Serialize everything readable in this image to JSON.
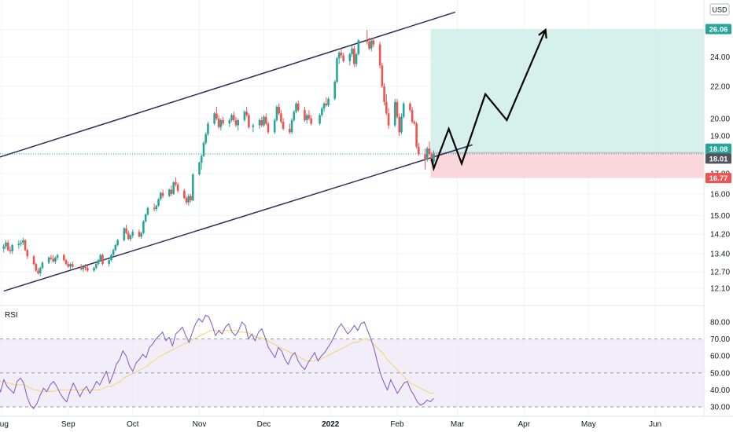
{
  "currency_label": "USD",
  "colors": {
    "up": "#26a69a",
    "down": "#ef5350",
    "channel": "#2a2e5c",
    "rsi_line": "#7e57c2",
    "rsi_ma": "#f5d36b",
    "rsi_band": "#ede7f6",
    "target_zone": "#cfeee8",
    "stop_zone": "#f9d3d6",
    "target_badge": "#26a69a",
    "stop_badge": "#ef5350",
    "price_badge": "#50535e",
    "grid": "#f0f3fa"
  },
  "price_axis": {
    "ticks": [
      "26.00",
      "24.00",
      "22.00",
      "20.00",
      "19.00",
      "18.00",
      "17.00",
      "16.00",
      "15.00",
      "14.20",
      "13.40",
      "12.70",
      "12.10"
    ],
    "badges": {
      "target": "26.06",
      "entry": "18.08",
      "last": "18.01",
      "stop": "16.77"
    }
  },
  "rsi_panel": {
    "label": "RSI",
    "ticks": [
      "80.00",
      "70.00",
      "60.00",
      "50.00",
      "40.00",
      "30.00"
    ]
  },
  "time_axis": {
    "labels": [
      "Aug",
      "Sep",
      "Oct",
      "Nov",
      "Dec",
      "2022",
      "Feb",
      "Mar",
      "Apr",
      "May",
      "Jun"
    ]
  },
  "chart_data": {
    "type": "candlestick",
    "title": "",
    "y_scale": "log",
    "ylim": [
      11.8,
      27.5
    ],
    "rsi_ylim": [
      28,
      85
    ],
    "candles": [
      [
        "Jul 30",
        13.75,
        13.9,
        13.55,
        13.6
      ],
      [
        "Aug 2",
        13.6,
        13.8,
        13.45,
        13.7
      ],
      [
        "Aug 3",
        13.7,
        13.95,
        13.6,
        13.85
      ],
      [
        "Aug 4",
        13.85,
        13.95,
        13.5,
        13.55
      ],
      [
        "Aug 5",
        13.55,
        13.7,
        13.4,
        13.5
      ],
      [
        "Aug 6",
        13.5,
        13.8,
        13.4,
        13.75
      ],
      [
        "Aug 9",
        13.75,
        13.95,
        13.6,
        13.8
      ],
      [
        "Aug 10",
        13.8,
        13.95,
        13.7,
        13.85
      ],
      [
        "Aug 11",
        13.85,
        14.05,
        13.75,
        13.95
      ],
      [
        "Aug 12",
        13.95,
        14.0,
        13.5,
        13.55
      ],
      [
        "Aug 13",
        13.55,
        13.6,
        13.2,
        13.3
      ],
      [
        "Aug 16",
        13.3,
        13.35,
        12.95,
        13.0
      ],
      [
        "Aug 17",
        13.0,
        13.05,
        12.7,
        12.75
      ],
      [
        "Aug 18",
        12.75,
        12.85,
        12.6,
        12.65
      ],
      [
        "Aug 19",
        12.65,
        12.9,
        12.55,
        12.85
      ],
      [
        "Aug 20",
        12.85,
        13.1,
        12.8,
        13.05
      ],
      [
        "Aug 23",
        13.05,
        13.3,
        13.0,
        13.25
      ],
      [
        "Aug 24",
        13.25,
        13.35,
        13.15,
        13.2
      ],
      [
        "Aug 25",
        13.2,
        13.35,
        13.05,
        13.1
      ],
      [
        "Aug 26",
        13.1,
        13.3,
        13.0,
        13.25
      ],
      [
        "Aug 27",
        13.25,
        13.4,
        13.15,
        13.35
      ],
      [
        "Aug 30",
        13.35,
        13.4,
        13.1,
        13.15
      ],
      [
        "Aug 31",
        13.15,
        13.2,
        12.95,
        13.0
      ],
      [
        "Sep 1",
        13.0,
        13.1,
        12.85,
        12.9
      ],
      [
        "Sep 2",
        12.9,
        13.05,
        12.8,
        13.0
      ],
      [
        "Sep 3",
        13.0,
        13.1,
        12.85,
        12.9
      ],
      [
        "Sep 7",
        12.9,
        13.0,
        12.75,
        12.8
      ],
      [
        "Sep 8",
        12.8,
        12.95,
        12.7,
        12.9
      ],
      [
        "Sep 9",
        12.9,
        13.0,
        12.75,
        12.85
      ],
      [
        "Sep 10",
        12.85,
        12.95,
        12.7,
        12.75
      ],
      [
        "Sep 13",
        12.75,
        12.9,
        12.7,
        12.85
      ],
      [
        "Sep 14",
        12.85,
        13.05,
        12.8,
        13.0
      ],
      [
        "Sep 15",
        13.0,
        13.2,
        12.95,
        13.15
      ],
      [
        "Sep 16",
        13.15,
        13.4,
        13.1,
        13.35
      ],
      [
        "Sep 17",
        13.35,
        13.4,
        12.95,
        13.0
      ],
      [
        "Sep 20",
        13.0,
        13.2,
        12.9,
        13.15
      ],
      [
        "Sep 21",
        13.15,
        13.4,
        13.1,
        13.35
      ],
      [
        "Sep 22",
        13.35,
        13.6,
        13.3,
        13.55
      ],
      [
        "Sep 23",
        13.55,
        13.8,
        13.5,
        13.75
      ],
      [
        "Sep 24",
        13.75,
        14.0,
        13.7,
        13.95
      ],
      [
        "Sep 27",
        13.95,
        14.5,
        13.9,
        14.45
      ],
      [
        "Sep 28",
        14.45,
        14.6,
        14.2,
        14.25
      ],
      [
        "Sep 29",
        14.25,
        14.35,
        13.95,
        14.0
      ],
      [
        "Sep 30",
        14.0,
        14.2,
        13.9,
        14.15
      ],
      [
        "Oct 1",
        14.15,
        14.4,
        14.05,
        14.3
      ],
      [
        "Oct 4",
        14.3,
        14.4,
        14.05,
        14.1
      ],
      [
        "Oct 5",
        14.1,
        14.3,
        14.0,
        14.25
      ],
      [
        "Oct 6",
        14.25,
        14.8,
        14.2,
        14.75
      ],
      [
        "Oct 7",
        14.75,
        15.1,
        14.7,
        15.05
      ],
      [
        "Oct 8",
        15.05,
        15.4,
        15.0,
        15.35
      ],
      [
        "Oct 11",
        15.35,
        15.55,
        15.2,
        15.3
      ],
      [
        "Oct 12",
        15.3,
        15.5,
        15.2,
        15.45
      ],
      [
        "Oct 13",
        15.45,
        15.8,
        15.4,
        15.75
      ],
      [
        "Oct 14",
        15.75,
        16.1,
        15.7,
        16.05
      ],
      [
        "Oct 15",
        16.05,
        16.2,
        15.8,
        15.9
      ],
      [
        "Oct 18",
        15.9,
        16.25,
        15.85,
        16.2
      ],
      [
        "Oct 19",
        16.2,
        16.4,
        15.9,
        16.0
      ],
      [
        "Oct 20",
        16.0,
        16.6,
        15.95,
        16.55
      ],
      [
        "Oct 21",
        16.55,
        16.8,
        16.35,
        16.45
      ],
      [
        "Oct 22",
        16.45,
        16.55,
        16.05,
        16.15
      ],
      [
        "Oct 25",
        16.15,
        16.25,
        15.75,
        15.8
      ],
      [
        "Oct 26",
        15.8,
        15.9,
        15.5,
        15.6
      ],
      [
        "Oct 27",
        15.6,
        16.0,
        15.45,
        15.9
      ],
      [
        "Oct 28",
        15.9,
        16.0,
        15.6,
        15.7
      ],
      [
        "Oct 29",
        15.7,
        17.0,
        15.65,
        16.95
      ],
      [
        "Nov 1",
        16.95,
        17.6,
        16.9,
        17.55
      ],
      [
        "Nov 2",
        17.55,
        18.0,
        17.2,
        17.9
      ],
      [
        "Nov 3",
        17.9,
        18.7,
        17.85,
        18.6
      ],
      [
        "Nov 4",
        18.6,
        19.2,
        18.5,
        19.1
      ],
      [
        "Nov 5",
        19.1,
        19.8,
        19.0,
        19.7
      ],
      [
        "Nov 8",
        19.7,
        20.4,
        19.6,
        20.3
      ],
      [
        "Nov 9",
        20.3,
        20.7,
        19.9,
        20.0
      ],
      [
        "Nov 10",
        20.0,
        20.2,
        19.4,
        19.5
      ],
      [
        "Nov 11",
        19.5,
        20.0,
        19.3,
        19.9
      ],
      [
        "Nov 12",
        19.9,
        20.1,
        19.6,
        19.7
      ],
      [
        "Nov 15",
        19.7,
        20.0,
        19.5,
        19.9
      ],
      [
        "Nov 16",
        19.9,
        20.3,
        19.8,
        20.2
      ],
      [
        "Nov 17",
        20.2,
        20.4,
        19.8,
        19.9
      ],
      [
        "Nov 18",
        19.9,
        20.1,
        19.5,
        19.6
      ],
      [
        "Nov 19",
        19.6,
        20.0,
        19.3,
        19.9
      ],
      [
        "Nov 22",
        19.9,
        20.5,
        19.8,
        20.4
      ],
      [
        "Nov 23",
        20.4,
        20.7,
        20.1,
        20.2
      ],
      [
        "Nov 24",
        20.2,
        20.3,
        19.4,
        19.5
      ],
      [
        "Nov 26",
        19.5,
        19.7,
        19.2,
        19.6
      ],
      [
        "Nov 29",
        19.6,
        20.0,
        19.4,
        19.9
      ],
      [
        "Nov 30",
        19.9,
        20.1,
        19.5,
        19.6
      ],
      [
        "Dec 1",
        19.6,
        20.2,
        19.5,
        20.1
      ],
      [
        "Dec 2",
        20.1,
        20.3,
        19.6,
        19.7
      ],
      [
        "Dec 3",
        19.7,
        19.8,
        19.1,
        19.2
      ],
      [
        "Dec 6",
        19.2,
        20.0,
        19.1,
        19.9
      ],
      [
        "Dec 7",
        19.9,
        20.8,
        19.8,
        20.7
      ],
      [
        "Dec 8",
        20.7,
        20.9,
        20.2,
        20.3
      ],
      [
        "Dec 9",
        20.3,
        20.5,
        19.7,
        19.8
      ],
      [
        "Dec 10",
        19.8,
        20.0,
        19.3,
        19.4
      ],
      [
        "Dec 13",
        19.4,
        19.7,
        19.1,
        19.2
      ],
      [
        "Dec 14",
        19.2,
        20.0,
        19.1,
        19.9
      ],
      [
        "Dec 15",
        19.9,
        20.5,
        19.8,
        20.4
      ],
      [
        "Dec 16",
        20.4,
        21.0,
        20.3,
        20.9
      ],
      [
        "Dec 17",
        20.9,
        21.1,
        20.4,
        20.5
      ],
      [
        "Dec 20",
        20.5,
        20.7,
        19.8,
        19.9
      ],
      [
        "Dec 21",
        19.9,
        20.3,
        19.7,
        20.2
      ],
      [
        "Dec 22",
        20.2,
        20.5,
        19.9,
        20.0
      ],
      [
        "Dec 23",
        20.0,
        20.2,
        19.6,
        19.7
      ],
      [
        "Dec 27",
        19.7,
        20.3,
        19.6,
        20.2
      ],
      [
        "Dec 28",
        20.2,
        20.7,
        20.1,
        20.6
      ],
      [
        "Dec 29",
        20.6,
        21.0,
        20.4,
        20.9
      ],
      [
        "Dec 30",
        20.9,
        21.3,
        20.7,
        20.8
      ],
      [
        "Dec 31",
        20.8,
        21.3,
        20.7,
        21.2
      ],
      [
        "Jan 3",
        21.2,
        22.4,
        21.1,
        22.3
      ],
      [
        "Jan 4",
        22.3,
        24.0,
        22.2,
        23.9
      ],
      [
        "Jan 5",
        23.9,
        24.4,
        23.5,
        24.3
      ],
      [
        "Jan 6",
        24.3,
        24.6,
        23.9,
        24.1
      ],
      [
        "Jan 7",
        24.1,
        24.3,
        23.6,
        23.7
      ],
      [
        "Jan 10",
        23.7,
        24.3,
        23.4,
        24.2
      ],
      [
        "Jan 11",
        24.2,
        24.8,
        24.0,
        24.6
      ],
      [
        "Jan 12",
        24.6,
        24.8,
        23.3,
        23.5
      ],
      [
        "Jan 13",
        23.5,
        24.3,
        23.3,
        24.2
      ],
      [
        "Jan 14",
        24.2,
        25.3,
        24.1,
        25.2
      ],
      [
        "Jan 18",
        25.2,
        26.0,
        24.9,
        25.1
      ],
      [
        "Jan 19",
        25.1,
        25.4,
        24.5,
        24.6
      ],
      [
        "Jan 20",
        24.6,
        25.3,
        24.4,
        25.2
      ],
      [
        "Jan 21",
        25.2,
        25.4,
        24.7,
        24.9
      ],
      [
        "Jan 24",
        24.9,
        25.1,
        23.2,
        23.4
      ],
      [
        "Jan 25",
        23.4,
        23.6,
        21.9,
        22.0
      ],
      [
        "Jan 26",
        22.0,
        22.2,
        20.8,
        21.0
      ],
      [
        "Jan 27",
        21.0,
        21.5,
        20.2,
        20.3
      ],
      [
        "Jan 28",
        20.3,
        20.6,
        19.4,
        19.6
      ],
      [
        "Jan 31",
        19.6,
        21.2,
        19.5,
        21.0
      ],
      [
        "Feb 1",
        21.0,
        21.2,
        20.0,
        20.1
      ],
      [
        "Feb 2",
        20.1,
        20.3,
        19.0,
        19.2
      ],
      [
        "Feb 3",
        19.2,
        20.3,
        19.1,
        20.1
      ],
      [
        "Feb 4",
        20.1,
        21.0,
        20.0,
        20.9
      ],
      [
        "Feb 7",
        20.9,
        21.0,
        20.4,
        20.5
      ],
      [
        "Feb 8",
        20.5,
        20.7,
        19.7,
        19.8
      ],
      [
        "Feb 9",
        19.8,
        19.9,
        19.6,
        19.7
      ],
      [
        "Feb 10",
        19.7,
        19.8,
        18.3,
        18.4
      ],
      [
        "Feb 11",
        18.4,
        18.6,
        17.9,
        18.0
      ],
      [
        "Feb 14",
        18.0,
        18.3,
        17.2,
        17.7
      ],
      [
        "Feb 15",
        17.7,
        18.4,
        17.6,
        18.3
      ],
      [
        "Feb 16",
        18.3,
        18.7,
        17.9,
        18.0
      ],
      [
        "Feb 17",
        18.0,
        18.1,
        17.5,
        17.6
      ],
      [
        "Feb 18",
        17.6,
        18.2,
        17.5,
        18.01
      ]
    ],
    "rsi": [
      43,
      39,
      46,
      42,
      40,
      38,
      45,
      47,
      44,
      36,
      31,
      29,
      32,
      37,
      41,
      39,
      43,
      45,
      42,
      38,
      35,
      33,
      39,
      44,
      40,
      36,
      40,
      42,
      38,
      41,
      45,
      43,
      47,
      51,
      44,
      49,
      55,
      58,
      63,
      60,
      54,
      51,
      56,
      58,
      61,
      59,
      65,
      67,
      70,
      72,
      74,
      69,
      71,
      66,
      73,
      75,
      77,
      72,
      68,
      74,
      79,
      82,
      80,
      84,
      83,
      78,
      72,
      75,
      73,
      77,
      79,
      74,
      72,
      75,
      80,
      78,
      70,
      73,
      69,
      74,
      76,
      71,
      65,
      62,
      59,
      65,
      63,
      58,
      55,
      60,
      62,
      57,
      54,
      52,
      56,
      59,
      62,
      57,
      60,
      62,
      65,
      68,
      72,
      76,
      79,
      76,
      73,
      75,
      78,
      75,
      79,
      80,
      75,
      70,
      64,
      56,
      49,
      44,
      40,
      46,
      42,
      38,
      41,
      44,
      45,
      40,
      37,
      33,
      31,
      32,
      34,
      33,
      35
    ],
    "rsi_ma": [
      46,
      45,
      45,
      44,
      44,
      43,
      43,
      43,
      43,
      42,
      41,
      40,
      40,
      39,
      39,
      39,
      39,
      39,
      40,
      40,
      40,
      40,
      40,
      40,
      40,
      40,
      40,
      40,
      40,
      40,
      40,
      40,
      41,
      42,
      42,
      43,
      44,
      45,
      47,
      48,
      49,
      50,
      51,
      52,
      53,
      54,
      56,
      57,
      59,
      60,
      61,
      62,
      63,
      64,
      65,
      66,
      67,
      68,
      69,
      70,
      71,
      72,
      73,
      74,
      75,
      75,
      75,
      75,
      75,
      75,
      75,
      75,
      75,
      74,
      74,
      74,
      73,
      72,
      71,
      71,
      70,
      69,
      68,
      67,
      66,
      65,
      64,
      63,
      62,
      61,
      60,
      59,
      58,
      57,
      57,
      57,
      58,
      58,
      59,
      60,
      61,
      62,
      63,
      64,
      65,
      66,
      67,
      68,
      68,
      69,
      70,
      70,
      69,
      67,
      65,
      63,
      61,
      58,
      56,
      54,
      52,
      50,
      48,
      46,
      44,
      43,
      42,
      41,
      40,
      39,
      38,
      38
    ],
    "channel_upper": {
      "from": [
        "Jul 30",
        17.8
      ],
      "to": [
        "Feb 28",
        27.4
      ]
    },
    "channel_lower": {
      "from": [
        "Aug 2",
        12.0
      ],
      "to": [
        "Mar 8",
        18.5
      ]
    },
    "levels": {
      "target": 26.06,
      "entry": 18.08,
      "last": 18.01,
      "stop": 16.77
    },
    "projection_path": [
      [
        "Feb 17",
        17.75
      ],
      [
        "Feb 18",
        17.25
      ],
      [
        "Feb 25",
        19.4
      ],
      [
        "Mar 3",
        17.5
      ],
      [
        "Mar 14",
        21.5
      ],
      [
        "Mar 24",
        19.9
      ],
      [
        "Apr 11",
        26.0
      ]
    ]
  }
}
